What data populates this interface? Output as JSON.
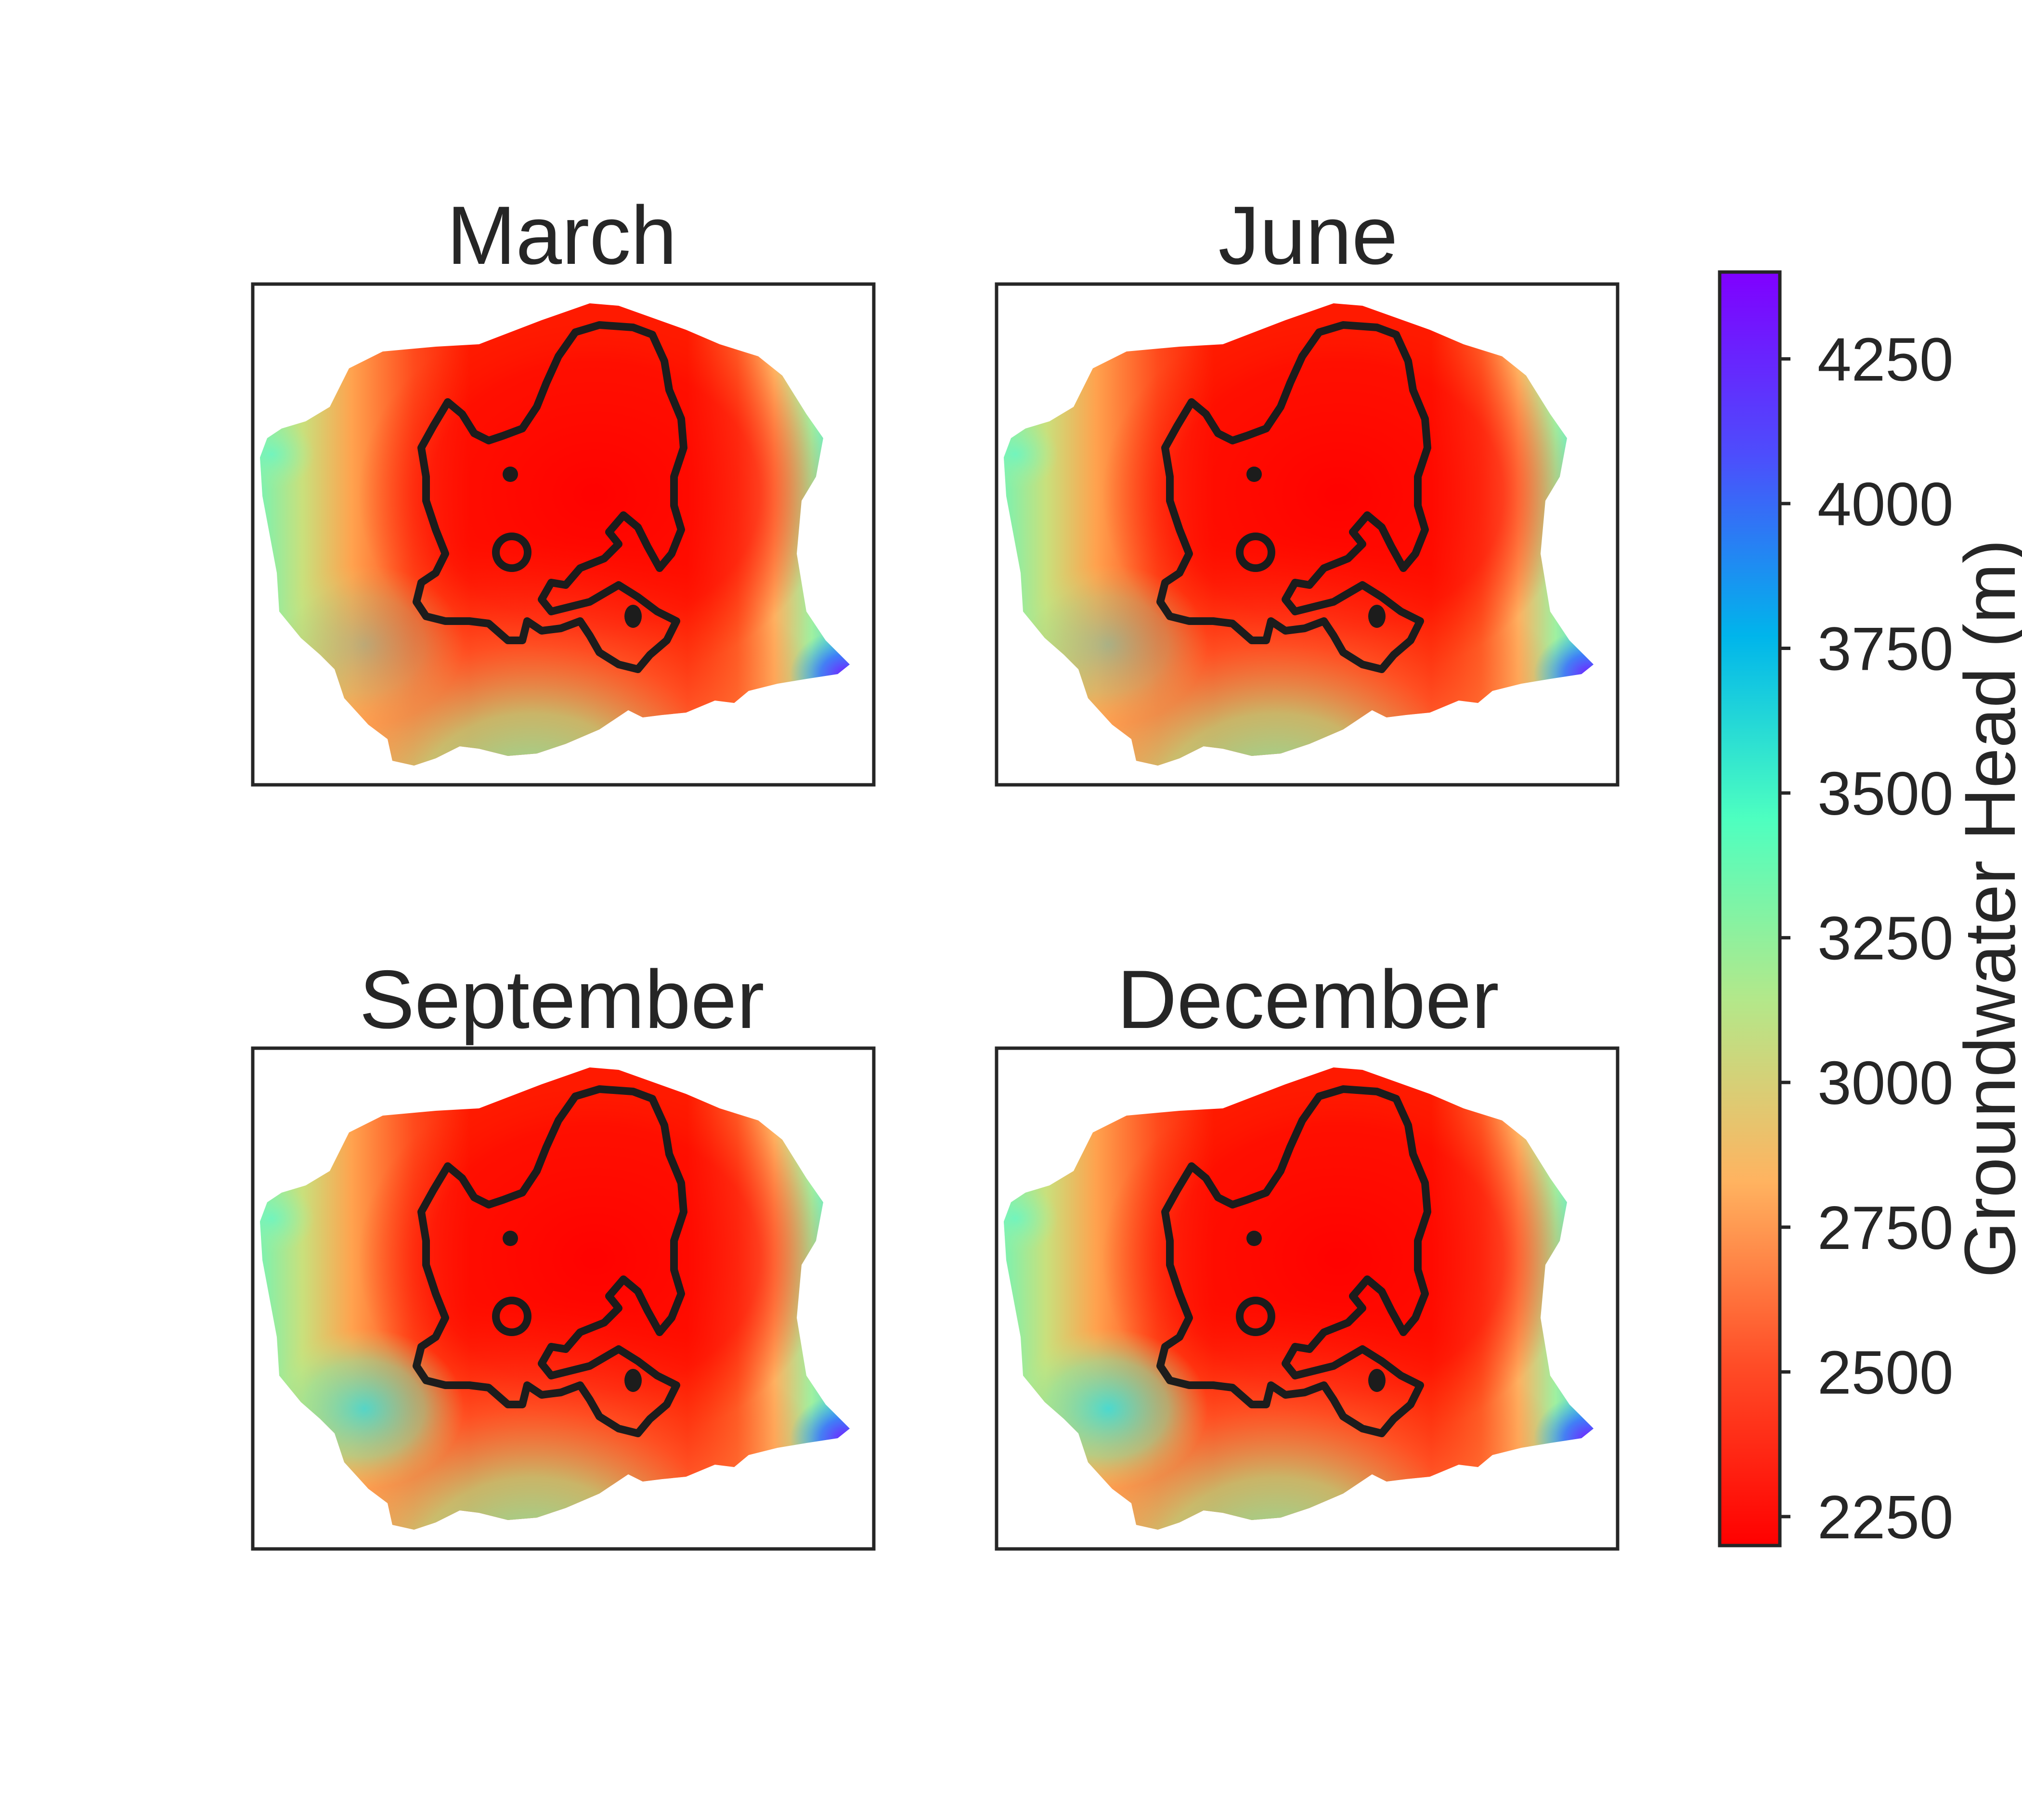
{
  "figure": {
    "colormap": "rainbow"
  },
  "chart_data": {
    "type": "heatmap",
    "panels": [
      {
        "title": "March",
        "seasonal_index": 0
      },
      {
        "title": "June",
        "seasonal_index": 1
      },
      {
        "title": "September",
        "seasonal_index": 2
      },
      {
        "title": "December",
        "seasonal_index": 3
      }
    ],
    "axes": {
      "xticks": "none",
      "yticks": "none",
      "grid": false
    },
    "overlay": {
      "color": "#1c1c1c",
      "description_visible": false
    },
    "colorbar": {
      "label": "Groundwater Head (m)",
      "vmin": 2200,
      "vmax": 4400,
      "ticks": [
        2250,
        2500,
        2750,
        3000,
        3250,
        3500,
        3750,
        4000,
        4250
      ],
      "tick_labels": [
        "2250",
        "2500",
        "2750",
        "3000",
        "3250",
        "3500",
        "3750",
        "4000",
        "4250"
      ],
      "colors": [
        "#ff0000",
        "#ff4d27",
        "#ffb360",
        "#b3e88a",
        "#4dffc0",
        "#00b5eb",
        "#4d4dfc",
        "#8000ff"
      ],
      "location": "right"
    }
  }
}
